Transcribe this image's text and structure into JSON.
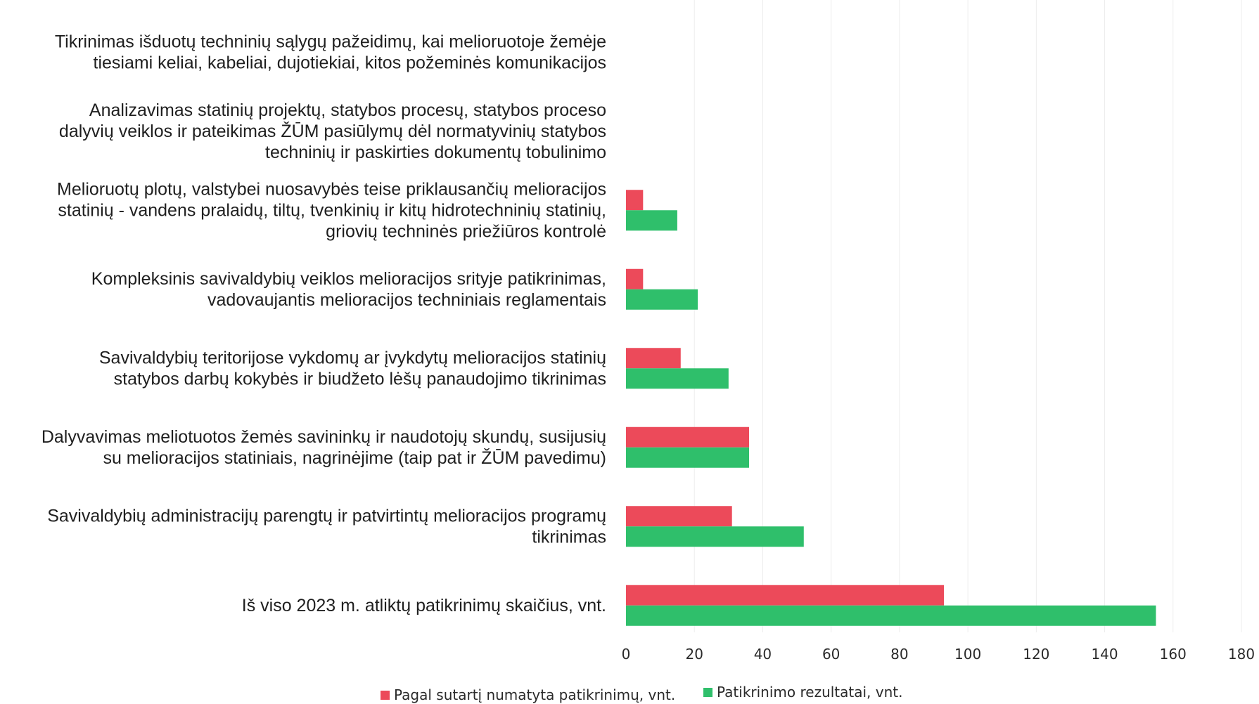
{
  "chart_data": {
    "type": "bar",
    "orientation": "horizontal",
    "title": "",
    "xlabel": "",
    "ylabel": "",
    "xlim": [
      0,
      180
    ],
    "xticks": [
      0,
      20,
      40,
      60,
      80,
      100,
      120,
      140,
      160,
      180
    ],
    "grid": "vertical",
    "legend_position": "bottom",
    "categories": [
      [
        "Tikrinimas išduotų techninių sąlygų pažeidimų, kai melioruotoje žemėje",
        "tiesiami keliai, kabeliai, dujotiekiai, kitos požeminės komunikacijos"
      ],
      [
        "Analizavimas statinių projektų, statybos procesų, statybos proceso",
        "dalyvių veiklos ir pateikimas ŽŪM pasiūlymų dėl normatyvinių statybos",
        "techninių ir paskirties dokumentų tobulinimo"
      ],
      [
        "Melioruotų plotų, valstybei nuosavybės teise priklausančių melioracijos",
        "statinių - vandens pralaidų, tiltų, tvenkinių ir kitų hidrotechninių statinių,",
        "griovių techninės priežiūros kontrolė"
      ],
      [
        "Kompleksinis savivaldybių veiklos melioracijos srityje patikrinimas,",
        "vadovaujantis melioracijos techniniais reglamentais"
      ],
      [
        "Savivaldybių teritorijose vykdomų ar įvykdytų melioracijos statinių",
        "statybos darbų kokybės ir biudžeto lėšų panaudojimo tikrinimas"
      ],
      [
        "Dalyvavimas meliotuotos žemės savininkų ir naudotojų skundų, susijusių",
        "su melioracijos statiniais, nagrinėjime (taip pat ir ŽŪM pavedimu)"
      ],
      [
        "Savivaldybių administracijų parengtų  ir patvirtintų melioracijos programų",
        "tikrinimas"
      ],
      [
        "Iš viso 2023 m. atliktų patikrinimų skaičius, vnt."
      ]
    ],
    "series": [
      {
        "name": "Pagal sutartį numatyta patikrinimų, vnt.",
        "color": "#ec4a5a",
        "values": [
          0,
          0,
          5,
          5,
          16,
          36,
          31,
          93
        ]
      },
      {
        "name": "Patikrinimo rezultatai, vnt.",
        "color": "#2fbf6b",
        "values": [
          0,
          0,
          15,
          21,
          30,
          36,
          52,
          155
        ]
      }
    ]
  }
}
